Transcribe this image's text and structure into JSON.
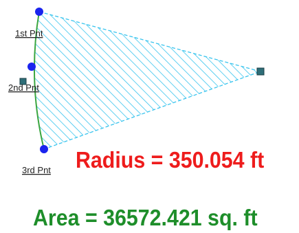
{
  "points": [
    {
      "label": "1st Pnt"
    },
    {
      "label": "2nd Pnt"
    },
    {
      "label": "3rd Pnt"
    }
  ],
  "readouts": {
    "radius": "Radius = 350.054 ft",
    "area": "Area = 36572.421 sq. ft"
  },
  "colors": {
    "hatch": "#38c4ee",
    "arc": "#3aa640",
    "point": "#1a24ee",
    "handle": "#2e6e78",
    "radius_text": "#ee1c1c",
    "area_text": "#1e8e2a"
  }
}
